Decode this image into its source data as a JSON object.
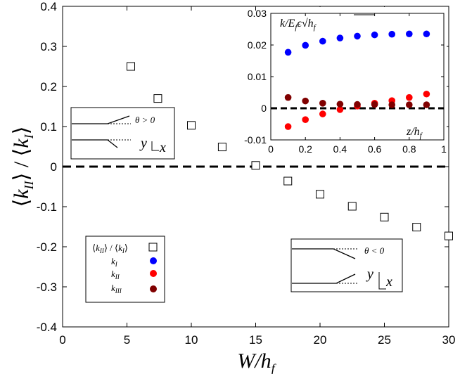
{
  "chart_data": {
    "type": "scatter",
    "main": {
      "xlabel": "W/h_f",
      "ylabel": "⟨k_II⟩ / ⟨k_I⟩",
      "xlim": [
        0,
        30
      ],
      "ylim": [
        -0.4,
        0.4
      ],
      "xticks": [
        "0",
        "5",
        "10",
        "15",
        "20",
        "25",
        "30"
      ],
      "yticks": [
        "-0.4",
        "-0.3",
        "-0.2",
        "-0.1",
        "0",
        "0.1",
        "0.2",
        "0.3",
        "0.4"
      ],
      "series": [
        {
          "name": "⟨k_II⟩ / ⟨k_I⟩",
          "marker": "open-square",
          "x": [
            5.3,
            7.4,
            10.0,
            12.4,
            15.0,
            17.5,
            20.0,
            22.5,
            25.0,
            27.5,
            30.0
          ],
          "y": [
            0.25,
            0.17,
            0.103,
            0.049,
            0.003,
            -0.036,
            -0.069,
            -0.099,
            -0.126,
            -0.151,
            -0.173
          ]
        }
      ],
      "reference_line": {
        "y": 0,
        "style": "dashed"
      }
    },
    "inset": {
      "title": "k/E_f ε √h_f",
      "xlabel": "z/h_f",
      "xlim": [
        0,
        1
      ],
      "ylim": [
        -0.01,
        0.03
      ],
      "xticks": [
        "0",
        "0.2",
        "0.4",
        "0.6",
        "0.8",
        "1"
      ],
      "yticks": [
        "-0.01",
        "0",
        "0.01",
        "0.02",
        "0.03"
      ],
      "series": [
        {
          "name": "k_I",
          "color": "#0000ff",
          "x": [
            0.1,
            0.2,
            0.3,
            0.4,
            0.5,
            0.6,
            0.7,
            0.8,
            0.9
          ],
          "y": [
            0.0177,
            0.0199,
            0.0212,
            0.0222,
            0.0228,
            0.0232,
            0.0234,
            0.0235,
            0.0235
          ]
        },
        {
          "name": "k_II",
          "color": "#ff0000",
          "x": [
            0.1,
            0.2,
            0.3,
            0.4,
            0.5,
            0.6,
            0.7,
            0.8,
            0.9
          ],
          "y": [
            -0.0058,
            -0.0036,
            -0.0018,
            -0.0004,
            0.0007,
            0.0016,
            0.0024,
            0.0034,
            0.0045
          ]
        },
        {
          "name": "k_III",
          "color": "#800000",
          "x": [
            0.1,
            0.2,
            0.3,
            0.4,
            0.5,
            0.6,
            0.7,
            0.8,
            0.9
          ],
          "y": [
            0.0034,
            0.0023,
            0.0016,
            0.0013,
            0.0012,
            0.0012,
            0.0011,
            0.0011,
            0.0011
          ]
        }
      ],
      "reference_line": {
        "y": 0,
        "style": "dashed"
      }
    },
    "legend": {
      "placement": "bottom-left",
      "entries": [
        "⟨k_II⟩ / ⟨k_I⟩",
        "k_I",
        "k_II",
        "k_III"
      ]
    },
    "schematics": [
      {
        "label": "θ > 0",
        "axes": [
          "y",
          "x"
        ],
        "placement": "left"
      },
      {
        "label": "θ < 0",
        "axes": [
          "y",
          "x"
        ],
        "placement": "bottom-right"
      }
    ]
  }
}
